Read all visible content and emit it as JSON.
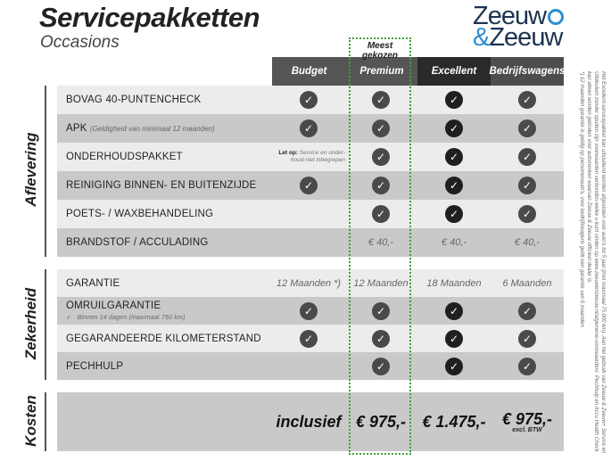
{
  "title": "Servicepakketten",
  "subtitle": "Occasions",
  "logo": {
    "line1": "Zeeuw",
    "amp": "&",
    "line2": "Zeeuw",
    "colors": {
      "navy": "#1d3350",
      "blue": "#2a8fd0"
    }
  },
  "most_chosen": "Meest gekozen",
  "columns": [
    "Budget",
    "Premium",
    "Excellent",
    "Bedrijfswagens"
  ],
  "sections": {
    "aflevering": "Aflevering",
    "zekerheid": "Zekerheid",
    "kosten": "Kosten"
  },
  "rows": [
    {
      "label": "BOVAG 40-PUNTENCHECK",
      "cells": [
        "check",
        "check",
        "check",
        "check"
      ]
    },
    {
      "label": "APK",
      "sub": "(Geldigheid van minimaal 12 maanden)",
      "cells": [
        "check",
        "check",
        "check",
        "check"
      ]
    },
    {
      "label": "ONDERHOUDSPAKKET",
      "note_bold": "Let op:",
      "note": "Service en onder-houd niet inbegrepen",
      "cells": [
        "note",
        "check",
        "check",
        "check"
      ]
    },
    {
      "label": "REINIGING BINNEN- EN BUITENZIJDE",
      "cells": [
        "check",
        "check",
        "check",
        "check"
      ]
    },
    {
      "label": "POETS- / WAXBEHANDELING",
      "cells": [
        "",
        "check",
        "check",
        "check"
      ]
    },
    {
      "label": "BRANDSTOF / ACCULADING",
      "cells": [
        "",
        "€ 40,-",
        "€ 40,-",
        "€ 40,-"
      ]
    },
    {
      "label": "GARANTIE",
      "cells": [
        "12 Maanden *)",
        "12 Maanden",
        "18 Maanden",
        "6 Maanden"
      ]
    },
    {
      "label": "OMRUILGARANTIE",
      "sub2": "Binnen 14 dagen (maximaal 750 km)",
      "cells": [
        "check",
        "check",
        "check",
        "check"
      ]
    },
    {
      "label": "GEGARANDEERDE KILOMETERSTAND",
      "cells": [
        "check",
        "check",
        "check",
        "check"
      ]
    },
    {
      "label": "PECHHULP",
      "cells": [
        "",
        "check",
        "check",
        "check"
      ]
    }
  ],
  "costs": [
    "inclusief",
    "€ 975,-",
    "€ 1.475,-",
    "€ 975,-"
  ],
  "costs_note": "excl. BTW",
  "footnote": "Het Excellent-servicepakket kan uitsluitend worden afgesloten voor auto's tot 5 jaar (met maximaal 75.000 km). Aan het gebruik van Zeeuw & Zeeuw+ Service en Uitdeuken zonder spuiten zijn voorwaarden verbonden welke u kunt vinden op www.zeeuwenzeeuw.nl/algemene-voorwaarden/. Pechhulp en Accu Health Check kan alleen worden geboden voor automerken waarvan Zeeuw & Zeeuw officieel dealer is.",
  "footnote2": "*) 12 maanden garantie is geldig op personenauto's, voor bedrijfswagens geldt een garantie van 6 maanden.",
  "check_symbol": "✓",
  "header_colors": [
    "#555555",
    "#555555",
    "#2a2a2a",
    "#4d4d4d"
  ]
}
